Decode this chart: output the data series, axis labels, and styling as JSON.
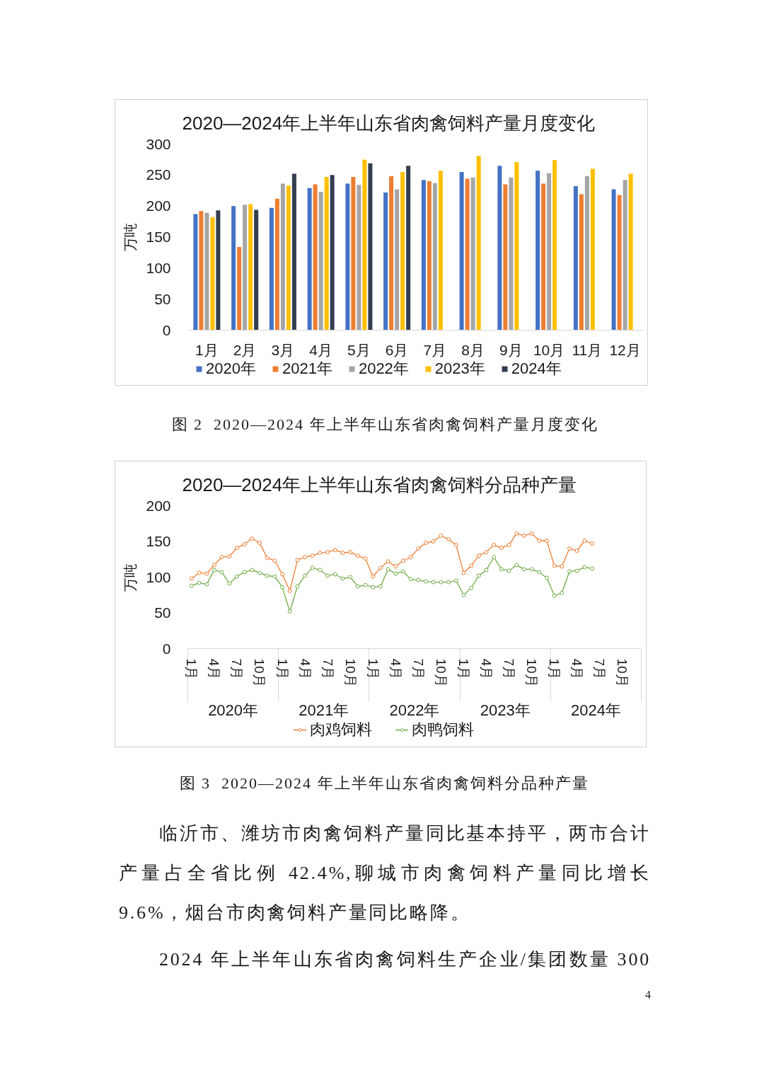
{
  "chart_data": [
    {
      "type": "bar",
      "title": "2020—2024年上半年山东省肉禽饲料产量月度变化",
      "ylabel": "万吨",
      "categories": [
        "1月",
        "2月",
        "3月",
        "4月",
        "5月",
        "6月",
        "7月",
        "8月",
        "9月",
        "10月",
        "11月",
        "12月"
      ],
      "series": [
        {
          "name": "2020年",
          "color": "#4472c4",
          "values": [
            187,
            200,
            197,
            229,
            236,
            222,
            242,
            255,
            265,
            257,
            232,
            227
          ]
        },
        {
          "name": "2021年",
          "color": "#ed7d31",
          "values": [
            192,
            134,
            212,
            235,
            247,
            248,
            240,
            244,
            235,
            236,
            219,
            218
          ]
        },
        {
          "name": "2022年",
          "color": "#a5a5a5",
          "values": [
            189,
            202,
            236,
            223,
            234,
            227,
            237,
            246,
            246,
            253,
            248,
            242
          ]
        },
        {
          "name": "2023年",
          "color": "#ffc000",
          "values": [
            182,
            203,
            233,
            247,
            275,
            255,
            257,
            281,
            271,
            274,
            260,
            252
          ]
        },
        {
          "name": "2024年",
          "color": "#333f50",
          "values": [
            193,
            194,
            252,
            250,
            269,
            265,
            null,
            null,
            null,
            null,
            null,
            null
          ]
        }
      ],
      "ylim": [
        0,
        300
      ],
      "yticks": [
        0,
        50,
        100,
        150,
        200,
        250,
        300
      ],
      "legend": "bottom",
      "annotations": [
        "图 2  2020—2024 年上半年山东省肉禽饲料产量月度变化"
      ]
    },
    {
      "type": "line",
      "title": "2020—2024年上半年山东省肉禽饲料分品种产量",
      "ylabel": "万吨",
      "categories": [
        "1月",
        null,
        null,
        "4月",
        null,
        null,
        "7月",
        null,
        null,
        "10月",
        null,
        null,
        "1月",
        null,
        null,
        "4月",
        null,
        null,
        "7月",
        null,
        null,
        "10月",
        null,
        null,
        "1月",
        null,
        null,
        "4月",
        null,
        null,
        "7月",
        null,
        null,
        "10月",
        null,
        null,
        "1月",
        null,
        null,
        "4月",
        null,
        null,
        "7月",
        null,
        null,
        "10月",
        null,
        null,
        "1月",
        null,
        null,
        "4月",
        null,
        null,
        "7月",
        null,
        null,
        "10月",
        null,
        null
      ],
      "series": [
        {
          "name": "肉鸡饲料",
          "color": "#ed7d31",
          "values": [
            98,
            106,
            105,
            117,
            128,
            129,
            141,
            146,
            154,
            148,
            127,
            123,
            104,
            81,
            124,
            128,
            130,
            134,
            135,
            138,
            134,
            135,
            130,
            126,
            101,
            113,
            122,
            115,
            123,
            128,
            140,
            148,
            150,
            158,
            153,
            145,
            106,
            116,
            130,
            135,
            145,
            141,
            145,
            161,
            158,
            161,
            151,
            151,
            116,
            115,
            140,
            137,
            151,
            147,
            null,
            null,
            null,
            null,
            null,
            null
          ]
        },
        {
          "name": "肉鸭饲料",
          "color": "#70ad47",
          "values": [
            88,
            92,
            90,
            110,
            107,
            91,
            101,
            107,
            110,
            106,
            102,
            101,
            86,
            52,
            87,
            102,
            113,
            110,
            102,
            104,
            98,
            100,
            87,
            89,
            86,
            87,
            111,
            105,
            108,
            97,
            96,
            94,
            93,
            93,
            93,
            95,
            75,
            85,
            102,
            110,
            128,
            111,
            109,
            117,
            111,
            111,
            107,
            99,
            74,
            78,
            108,
            109,
            114,
            112,
            null,
            null,
            null,
            null,
            null,
            null
          ]
        }
      ],
      "ylim": [
        0,
        200
      ],
      "yticks": [
        0,
        50,
        100,
        150,
        200
      ],
      "legend": "bottom",
      "marker": "circle",
      "annotations": [
        "2020年",
        "2021年",
        "2022年",
        "2023年",
        "2024年",
        "图 3  2020—2024 年上半年山东省肉禽饲料分品种产量",
        "临沂市、潍坊市肉禽饲料产量同比基本持平，两市合计产量占全省比例 42.4%,聊城市肉禽饲料产量同比增长 9.6%，烟台市肉禽饲料产量同比略降。",
        "2024 年上半年山东省肉禽饲料生产企业/集团数量 300",
        "4"
      ]
    }
  ]
}
